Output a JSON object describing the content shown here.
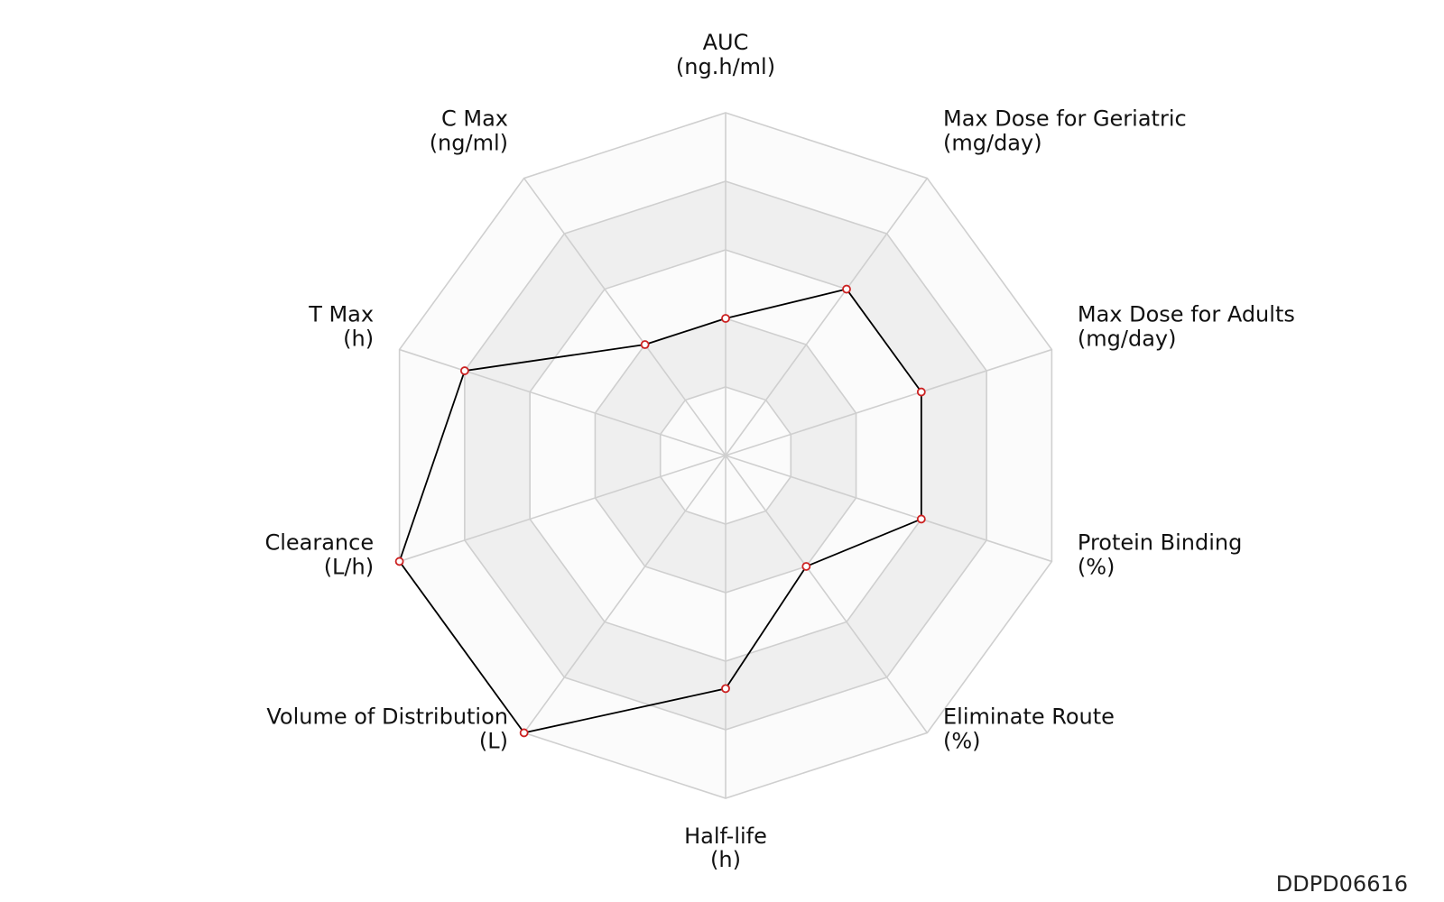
{
  "chart_data": {
    "type": "radar",
    "axes": [
      {
        "name": "AUC",
        "unit": "(ng.h/ml)",
        "value": 0.4
      },
      {
        "name": "Max Dose for Geriatric",
        "unit": "(mg/day)",
        "value": 0.6
      },
      {
        "name": "Max Dose for Adults",
        "unit": "(mg/day)",
        "value": 0.6
      },
      {
        "name": "Protein Binding",
        "unit": "(%)",
        "value": 0.6
      },
      {
        "name": "Eliminate Route",
        "unit": "(%)",
        "value": 0.4
      },
      {
        "name": "Half-life",
        "unit": "(h)",
        "value": 0.68
      },
      {
        "name": "Volume of Distribution",
        "unit": "(L)",
        "value": 1.0
      },
      {
        "name": "Clearance",
        "unit": "(L/h)",
        "value": 1.0
      },
      {
        "name": "T Max",
        "unit": "(h)",
        "value": 0.8
      },
      {
        "name": "C Max",
        "unit": "(ng/ml)",
        "value": 0.4
      }
    ],
    "rings": 5,
    "range": [
      0,
      1
    ],
    "colors": {
      "line": "#000000",
      "marker": "#cc2222",
      "band": "#efefef",
      "band_alt": "#fbfbfb",
      "grid": "#cfcfcf"
    }
  },
  "chart_id": "DDPD06616"
}
